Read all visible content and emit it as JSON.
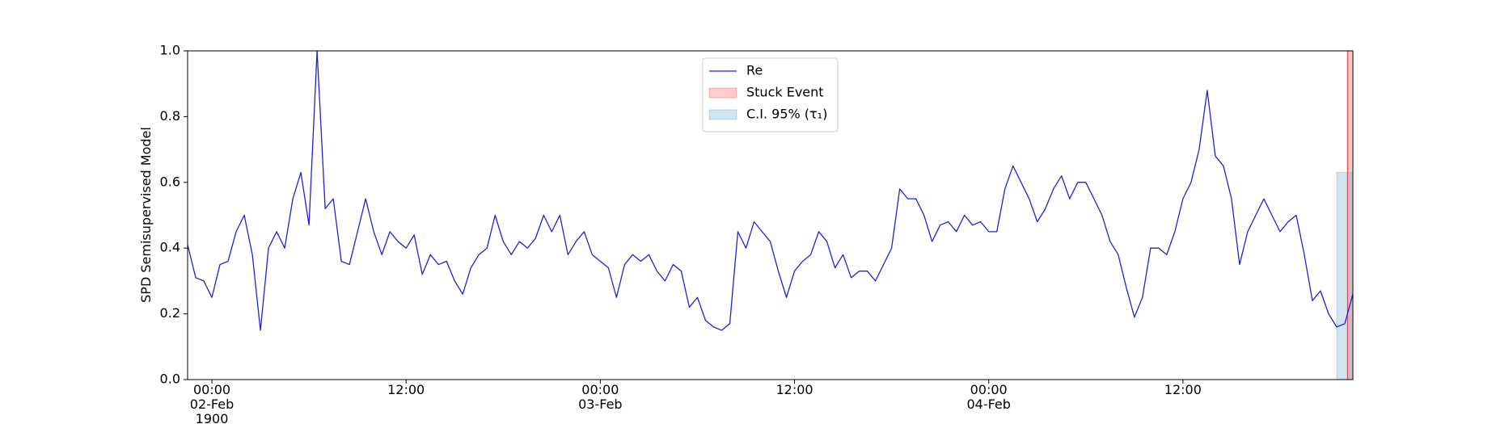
{
  "chart_data": {
    "type": "line",
    "ylabel": "SPD Semisupervised Model",
    "x": [
      "1900-02-01T22:30",
      "1900-02-01T23:00",
      "1900-02-01T23:30",
      "1900-02-02T00:00",
      "1900-02-02T00:30",
      "1900-02-02T01:00",
      "1900-02-02T01:30",
      "1900-02-02T02:00",
      "1900-02-02T02:30",
      "1900-02-02T03:00",
      "1900-02-02T03:30",
      "1900-02-02T04:00",
      "1900-02-02T04:30",
      "1900-02-02T05:00",
      "1900-02-02T05:30",
      "1900-02-02T06:00",
      "1900-02-02T06:30",
      "1900-02-02T07:00",
      "1900-02-02T07:30",
      "1900-02-02T08:00",
      "1900-02-02T08:30",
      "1900-02-02T09:00",
      "1900-02-02T09:30",
      "1900-02-02T10:00",
      "1900-02-02T10:30",
      "1900-02-02T11:00",
      "1900-02-02T11:30",
      "1900-02-02T12:00",
      "1900-02-02T12:30",
      "1900-02-02T13:00",
      "1900-02-02T13:30",
      "1900-02-02T14:00",
      "1900-02-02T14:30",
      "1900-02-02T15:00",
      "1900-02-02T15:30",
      "1900-02-02T16:00",
      "1900-02-02T16:30",
      "1900-02-02T17:00",
      "1900-02-02T17:30",
      "1900-02-02T18:00",
      "1900-02-02T18:30",
      "1900-02-02T19:00",
      "1900-02-02T19:30",
      "1900-02-02T20:00",
      "1900-02-02T20:30",
      "1900-02-02T21:00",
      "1900-02-02T21:30",
      "1900-02-02T22:00",
      "1900-02-02T22:30",
      "1900-02-02T23:00",
      "1900-02-02T23:30",
      "1900-02-03T00:00",
      "1900-02-03T00:30",
      "1900-02-03T01:00",
      "1900-02-03T01:30",
      "1900-02-03T02:00",
      "1900-02-03T02:30",
      "1900-02-03T03:00",
      "1900-02-03T03:30",
      "1900-02-03T04:00",
      "1900-02-03T04:30",
      "1900-02-03T05:00",
      "1900-02-03T05:30",
      "1900-02-03T06:00",
      "1900-02-03T06:30",
      "1900-02-03T07:00",
      "1900-02-03T07:30",
      "1900-02-03T08:00",
      "1900-02-03T08:30",
      "1900-02-03T09:00",
      "1900-02-03T09:30",
      "1900-02-03T10:00",
      "1900-02-03T10:30",
      "1900-02-03T11:00",
      "1900-02-03T11:30",
      "1900-02-03T12:00",
      "1900-02-03T12:30",
      "1900-02-03T13:00",
      "1900-02-03T13:30",
      "1900-02-03T14:00",
      "1900-02-03T14:30",
      "1900-02-03T15:00",
      "1900-02-03T15:30",
      "1900-02-03T16:00",
      "1900-02-03T16:30",
      "1900-02-03T17:00",
      "1900-02-03T17:30",
      "1900-02-03T18:00",
      "1900-02-03T18:30",
      "1900-02-03T19:00",
      "1900-02-03T19:30",
      "1900-02-03T20:00",
      "1900-02-03T20:30",
      "1900-02-03T21:00",
      "1900-02-03T21:30",
      "1900-02-03T22:00",
      "1900-02-03T22:30",
      "1900-02-03T23:00",
      "1900-02-03T23:30",
      "1900-02-04T00:00",
      "1900-02-04T00:30",
      "1900-02-04T01:00",
      "1900-02-04T01:30",
      "1900-02-04T02:00",
      "1900-02-04T02:30",
      "1900-02-04T03:00",
      "1900-02-04T03:30",
      "1900-02-04T04:00",
      "1900-02-04T04:30",
      "1900-02-04T05:00",
      "1900-02-04T05:30",
      "1900-02-04T06:00",
      "1900-02-04T06:30",
      "1900-02-04T07:00",
      "1900-02-04T07:30",
      "1900-02-04T08:00",
      "1900-02-04T08:30",
      "1900-02-04T09:00",
      "1900-02-04T09:30",
      "1900-02-04T10:00",
      "1900-02-04T10:30",
      "1900-02-04T11:00",
      "1900-02-04T11:30",
      "1900-02-04T12:00",
      "1900-02-04T12:30",
      "1900-02-04T13:00",
      "1900-02-04T13:30",
      "1900-02-04T14:00",
      "1900-02-04T14:30",
      "1900-02-04T15:00",
      "1900-02-04T15:30",
      "1900-02-04T16:00",
      "1900-02-04T16:30",
      "1900-02-04T17:00",
      "1900-02-04T17:30",
      "1900-02-04T18:00",
      "1900-02-04T18:30",
      "1900-02-04T19:00",
      "1900-02-04T19:30",
      "1900-02-04T20:00",
      "1900-02-04T20:30",
      "1900-02-04T21:00",
      "1900-02-04T21:30",
      "1900-02-04T22:00",
      "1900-02-04T22:30"
    ],
    "series": [
      {
        "name": "Re",
        "color": "#2222cc",
        "values": [
          0.41,
          0.31,
          0.3,
          0.25,
          0.35,
          0.36,
          0.45,
          0.5,
          0.38,
          0.15,
          0.4,
          0.45,
          0.4,
          0.55,
          0.63,
          0.47,
          1.0,
          0.52,
          0.55,
          0.36,
          0.35,
          0.45,
          0.55,
          0.45,
          0.38,
          0.45,
          0.42,
          0.4,
          0.44,
          0.32,
          0.38,
          0.35,
          0.36,
          0.3,
          0.26,
          0.34,
          0.38,
          0.4,
          0.5,
          0.42,
          0.38,
          0.42,
          0.4,
          0.43,
          0.5,
          0.45,
          0.5,
          0.38,
          0.42,
          0.45,
          0.38,
          0.36,
          0.34,
          0.25,
          0.35,
          0.38,
          0.36,
          0.38,
          0.33,
          0.3,
          0.35,
          0.33,
          0.22,
          0.25,
          0.18,
          0.16,
          0.15,
          0.17,
          0.45,
          0.4,
          0.48,
          0.45,
          0.42,
          0.33,
          0.25,
          0.33,
          0.36,
          0.38,
          0.45,
          0.42,
          0.34,
          0.38,
          0.31,
          0.33,
          0.33,
          0.3,
          0.35,
          0.4,
          0.58,
          0.55,
          0.55,
          0.5,
          0.42,
          0.47,
          0.48,
          0.45,
          0.5,
          0.47,
          0.48,
          0.45,
          0.45,
          0.58,
          0.65,
          0.6,
          0.55,
          0.48,
          0.52,
          0.58,
          0.62,
          0.55,
          0.6,
          0.6,
          0.55,
          0.5,
          0.42,
          0.38,
          0.28,
          0.19,
          0.25,
          0.4,
          0.4,
          0.38,
          0.45,
          0.55,
          0.6,
          0.7,
          0.88,
          0.68,
          0.65,
          0.55,
          0.35,
          0.45,
          0.5,
          0.55,
          0.5,
          0.45,
          0.48,
          0.5,
          0.38,
          0.24,
          0.27,
          0.2,
          0.16,
          0.17,
          0.26
        ]
      }
    ],
    "spans": [
      {
        "name": "Stuck Event",
        "color": "#ff0000",
        "x": [
          "1900-02-04T22:10",
          "1900-02-04T22:30"
        ]
      },
      {
        "name": "C.I. 95% (τ₁)",
        "color": "#1f77b4",
        "x": [
          "1900-02-04T21:30",
          "1900-02-04T22:30"
        ],
        "y": [
          0,
          0.63
        ]
      }
    ],
    "xlim": [
      "1900-02-01T22:30",
      "1900-02-04T22:30"
    ],
    "xticks": [
      {
        "value": "1900-02-02T00:00",
        "label": "00:00\n02-Feb\n1900"
      },
      {
        "value": "1900-02-02T12:00",
        "label": "12:00"
      },
      {
        "value": "1900-02-03T00:00",
        "label": "00:00\n03-Feb"
      },
      {
        "value": "1900-02-03T12:00",
        "label": "12:00"
      },
      {
        "value": "1900-02-04T00:00",
        "label": "00:00\n04-Feb"
      },
      {
        "value": "1900-02-04T12:00",
        "label": "12:00"
      }
    ],
    "ylim": [
      0,
      1
    ],
    "yticks": [
      {
        "value": 0,
        "label": "0.0"
      },
      {
        "value": 0.2,
        "label": "0.2"
      },
      {
        "value": 0.4,
        "label": "0.4"
      },
      {
        "value": 0.6,
        "label": "0.6"
      },
      {
        "value": 0.8,
        "label": "0.8"
      },
      {
        "value": 1,
        "label": "1.0"
      }
    ],
    "legend": "upper center"
  }
}
